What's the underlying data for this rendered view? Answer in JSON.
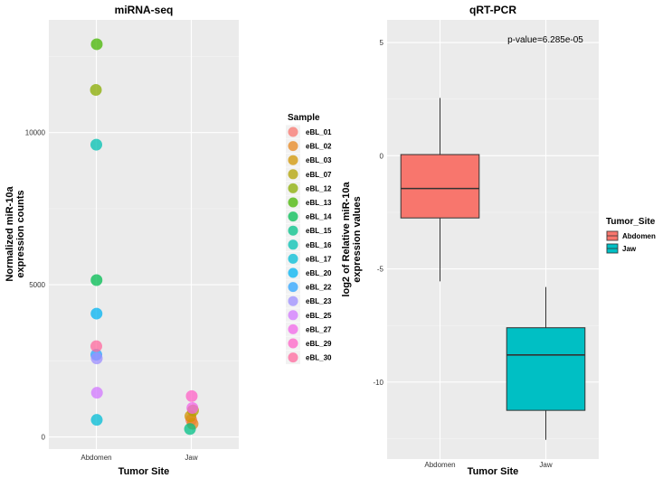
{
  "chart_data": [
    {
      "type": "scatter",
      "title": "miRNA-seq",
      "xlabel": "Tumor Site",
      "ylabel_lines": [
        "Normalized miR-10a",
        "expression counts"
      ],
      "categories": [
        "Abdomen",
        "Jaw"
      ],
      "ylim": [
        -400,
        13700
      ],
      "yticks": [
        0,
        5000,
        10000
      ],
      "legend_title": "Sample",
      "series": [
        {
          "name": "eBL_01",
          "color": "#F8766D",
          "category": "Jaw",
          "value": 560
        },
        {
          "name": "eBL_02",
          "color": "#E7851E",
          "category": "Jaw",
          "value": 430
        },
        {
          "name": "eBL_03",
          "color": "#D09400",
          "category": "Jaw",
          "value": 680
        },
        {
          "name": "eBL_07",
          "color": "#B2A100",
          "category": "Jaw",
          "value": 870
        },
        {
          "name": "eBL_12",
          "color": "#89AC00",
          "category": "Abdomen",
          "value": 11400
        },
        {
          "name": "eBL_13",
          "color": "#45B500",
          "category": "Abdomen",
          "value": 12900
        },
        {
          "name": "eBL_14",
          "color": "#00BC51",
          "category": "Abdomen",
          "value": 5150
        },
        {
          "name": "eBL_15",
          "color": "#00C087",
          "category": "Jaw",
          "value": 260
        },
        {
          "name": "eBL_16",
          "color": "#00C0B2",
          "category": "Abdomen",
          "value": 9600
        },
        {
          "name": "eBL_17",
          "color": "#00BCD6",
          "category": "Abdomen",
          "value": 560
        },
        {
          "name": "eBL_20",
          "color": "#00B3F2",
          "category": "Abdomen",
          "value": 4050
        },
        {
          "name": "eBL_22",
          "color": "#29A3FF",
          "category": "Abdomen",
          "value": 2700
        },
        {
          "name": "eBL_23",
          "color": "#9C8DFF",
          "category": "Abdomen",
          "value": 2580
        },
        {
          "name": "eBL_25",
          "color": "#D277FF",
          "category": "Abdomen",
          "value": 1450
        },
        {
          "name": "eBL_27",
          "color": "#F166E8",
          "category": "Jaw",
          "value": 950
        },
        {
          "name": "eBL_29",
          "color": "#FF61C7",
          "category": "Jaw",
          "value": 1340
        },
        {
          "name": "eBL_30",
          "color": "#FF689E",
          "category": "Abdomen",
          "value": 2980
        }
      ]
    },
    {
      "type": "box",
      "title": "qRT-PCR",
      "xlabel": "Tumor Site",
      "ylabel_lines": [
        "log2 of Relative miR-10a",
        "expression values"
      ],
      "categories": [
        "Abdomen",
        "Jaw"
      ],
      "ylim": [
        -13.4,
        6.0
      ],
      "yticks": [
        -10,
        -5,
        0,
        5
      ],
      "annotation": "p-value=6.285e-05",
      "legend_title": "Tumor_Site",
      "boxes": [
        {
          "name": "Abdomen",
          "color": "#F8766D",
          "min": -5.55,
          "q1": -2.75,
          "median": -1.45,
          "q3": 0.05,
          "max": 2.55
        },
        {
          "name": "Jaw",
          "color": "#00BFC4",
          "min": -12.55,
          "q1": -11.25,
          "median": -8.8,
          "q3": -7.6,
          "max": -5.8
        }
      ]
    }
  ]
}
